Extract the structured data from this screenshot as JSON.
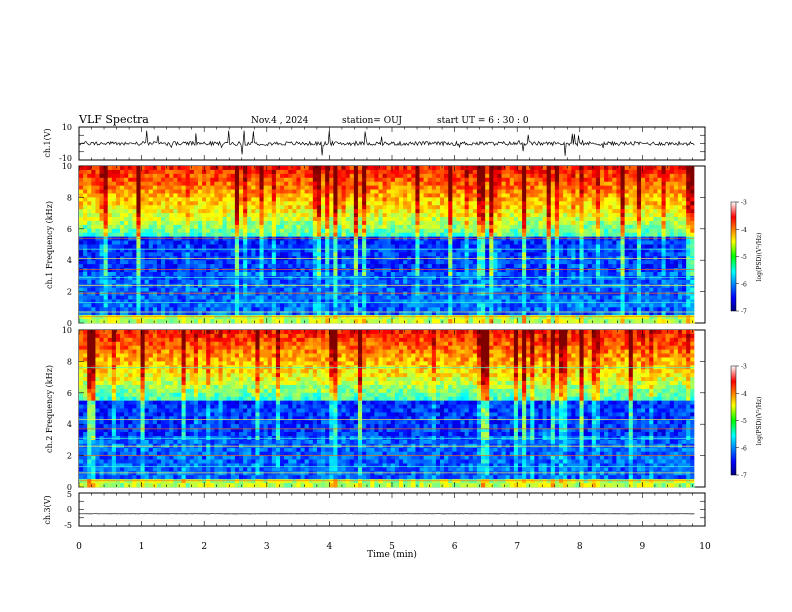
{
  "header": {
    "title": "VLF Spectra",
    "date": "Nov.4 , 2024",
    "station": "station= OUJ",
    "start": "start UT = 6 : 30 : 0"
  },
  "chart_data": [
    {
      "type": "line",
      "name": "ch1-waveform",
      "ylabel": "ch.1(V)",
      "ylim": [
        -10,
        10
      ],
      "xlim": [
        0,
        10
      ],
      "yticks": [
        "10",
        "-10"
      ],
      "baseline_v": 0
    },
    {
      "type": "heatmap",
      "name": "ch1-spectrogram",
      "ylabel": "ch.1 Frequency (kHz)",
      "ylim": [
        0,
        10
      ],
      "xlim": [
        0,
        9.83
      ],
      "yticks": [
        "0",
        "2",
        "4",
        "6",
        "8",
        "10"
      ],
      "colorbar": {
        "label": "log(PSD)(V²/Hz)",
        "range": [
          -7,
          -3
        ],
        "ticks": [
          "-3",
          "-4",
          "-5",
          "-6",
          "-7"
        ]
      },
      "lines_khz": [
        0.4,
        0.7,
        1.3,
        1.9,
        2.4,
        2.9,
        3.4,
        4.1,
        4.7,
        5.4
      ]
    },
    {
      "type": "heatmap",
      "name": "ch2-spectrogram",
      "ylabel": "ch.2 Frequency (kHz)",
      "ylim": [
        0,
        10
      ],
      "xlim": [
        0,
        9.83
      ],
      "yticks": [
        "0",
        "2",
        "4",
        "6",
        "8",
        "10"
      ],
      "colorbar": {
        "label": "log(PSD)(V²/Hz)",
        "range": [
          -7,
          -3
        ],
        "ticks": [
          "-3",
          "-4",
          "-5",
          "-6",
          "-7"
        ]
      },
      "lines_khz": [
        0.4,
        0.9,
        1.3,
        2.0,
        2.6,
        3.1,
        3.7,
        4.3,
        7.6
      ]
    },
    {
      "type": "line",
      "name": "ch3-waveform",
      "ylabel": "ch.3(V)",
      "ylim": [
        -5,
        5
      ],
      "xlim": [
        0,
        10
      ],
      "yticks": [
        "5",
        "0",
        "-5"
      ],
      "baseline_v": -1.3
    }
  ],
  "xaxis": {
    "label": "Time (min)",
    "ticks": [
      "0",
      "1",
      "2",
      "3",
      "4",
      "5",
      "6",
      "7",
      "8",
      "9",
      "10"
    ]
  }
}
